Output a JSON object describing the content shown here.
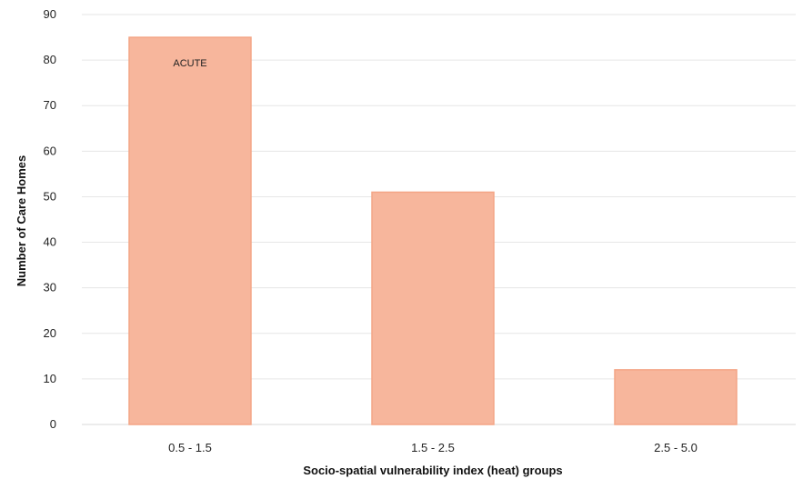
{
  "chart_data": {
    "type": "bar",
    "title": "",
    "xlabel": "Socio-spatial vulnerability index (heat) groups",
    "ylabel": "Number of Care Homes",
    "categories": [
      "0.5 - 1.5",
      "1.5 - 2.5",
      "2.5 - 5.0"
    ],
    "values": [
      85,
      51,
      12
    ],
    "bar_labels": [
      "ACUTE",
      "",
      ""
    ],
    "ylim": [
      0,
      90
    ],
    "yticks": [
      0,
      10,
      20,
      30,
      40,
      50,
      60,
      70,
      80,
      90
    ],
    "grid": true,
    "legend": "none",
    "bar_color": "#f7b69c",
    "bar_edge_color": "#f4a586"
  }
}
